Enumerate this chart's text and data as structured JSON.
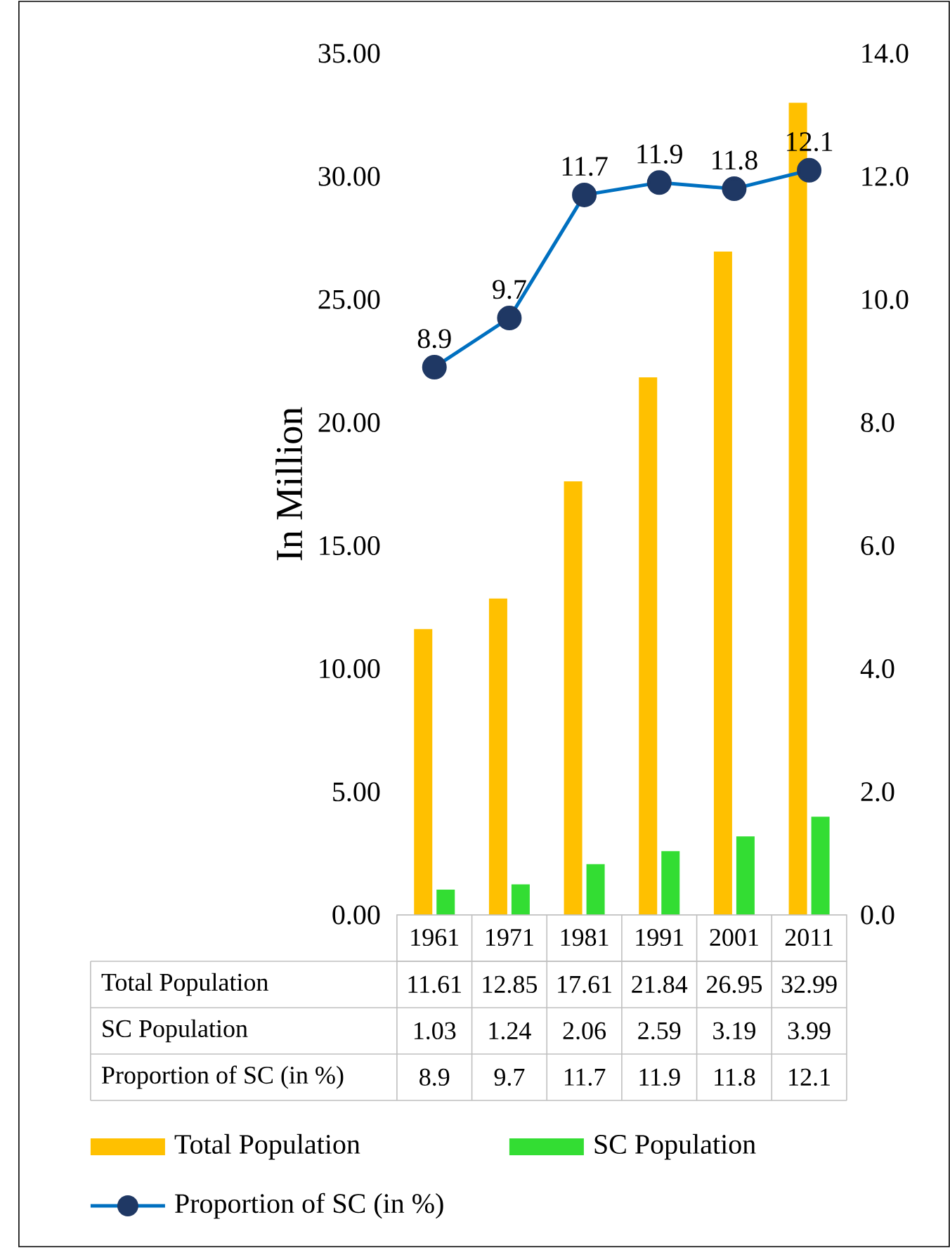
{
  "chart_data": {
    "type": "bar",
    "ylabel": "In Million",
    "categories": [
      "1961",
      "1971",
      "1981",
      "1991",
      "2001",
      "2011"
    ],
    "series": [
      {
        "name": "Total Population",
        "color": "#ffc000",
        "values": [
          11.61,
          12.85,
          17.61,
          21.84,
          26.95,
          32.99
        ]
      },
      {
        "name": "SC Population",
        "color": "#33dd33",
        "values": [
          1.03,
          1.24,
          2.06,
          2.59,
          3.19,
          3.99
        ]
      },
      {
        "name": "Proportion of SC (in %)",
        "type": "line",
        "axis": "y2",
        "color": "#0070c0",
        "marker": "circle",
        "line_style": "solid",
        "values": [
          8.9,
          9.7,
          11.7,
          11.9,
          11.8,
          12.1
        ],
        "value_labels": [
          "8.9",
          "9.7",
          "11.7",
          "11.9",
          "11.8",
          "12.1"
        ]
      }
    ],
    "ylim": [
      0,
      35
    ],
    "yticks": [
      {
        "value": 0,
        "label": "0.00"
      },
      {
        "value": 5,
        "label": "5.00"
      },
      {
        "value": 10,
        "label": "10.00"
      },
      {
        "value": 15,
        "label": "15.00"
      },
      {
        "value": 20,
        "label": "20.00"
      },
      {
        "value": 25,
        "label": "25.00"
      },
      {
        "value": 30,
        "label": "30.00"
      },
      {
        "value": 35,
        "label": "35.00"
      }
    ],
    "y2lim": [
      0,
      14
    ],
    "y2ticks": [
      {
        "value": 0,
        "label": "0.0"
      },
      {
        "value": 2,
        "label": "2.0"
      },
      {
        "value": 4,
        "label": "4.0"
      },
      {
        "value": 6,
        "label": "6.0"
      },
      {
        "value": 8,
        "label": "8.0"
      },
      {
        "value": 10,
        "label": "10.0"
      },
      {
        "value": 12,
        "label": "12.0"
      },
      {
        "value": 14,
        "label": "14.0"
      }
    ],
    "data_labels": true,
    "legend": "bottom",
    "grid": false
  }
}
